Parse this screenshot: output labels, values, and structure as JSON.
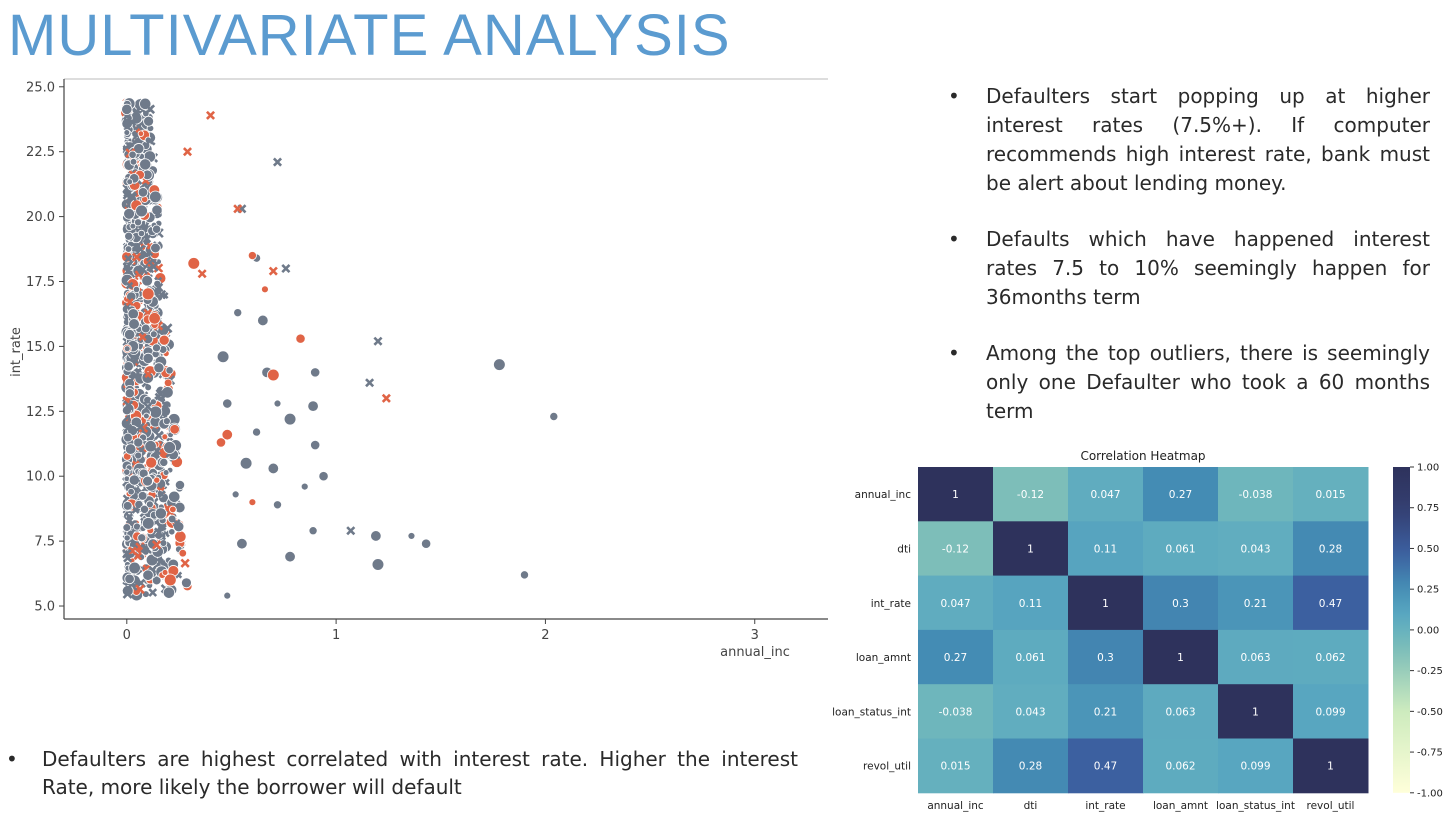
{
  "slide": {
    "title": "MULTIVARIATE ANALYSIS",
    "bullet_symbol": "•",
    "right_bullets": [
      " Defaulters start popping up at higher interest rates (7.5%+). If computer recommends high interest rate, bank must be alert about lending money.",
      "Defaults which have happened interest rates 7.5 to 10% seemingly happen for 36months term",
      "Among the top outliers, there is seemingly only one Defaulter who took a 60 months term"
    ],
    "bottom_bullet": "Defaulters are highest correlated with interest rate. Higher the interest Rate, more likely the borrower will default"
  },
  "colors": {
    "title": "#5b9bd0",
    "non_default": "#6f7a8a",
    "default": "#e06446"
  },
  "chart_data": [
    {
      "type": "scatter",
      "xlabel": "annual_inc",
      "ylabel": "int_rate",
      "xlim": [
        -0.3,
        3.35
      ],
      "ylim": [
        4.5,
        25.3
      ],
      "xticks": [
        0,
        1,
        2,
        3
      ],
      "yticks": [
        5.0,
        7.5,
        10.0,
        12.5,
        15.0,
        17.5,
        20.0,
        22.5,
        25.0
      ],
      "grid": false,
      "dense_cluster": {
        "x_range": [
          0.0,
          0.3
        ],
        "y_range": [
          5.4,
          24.4
        ]
      },
      "series": [
        {
          "group": "non_default",
          "points": [
            {
              "x": 0.72,
              "y": 22.1,
              "m": "x"
            },
            {
              "x": 0.55,
              "y": 20.3,
              "m": "x"
            },
            {
              "x": 0.76,
              "y": 18.0,
              "m": "x"
            },
            {
              "x": 0.62,
              "y": 18.4,
              "m": "o"
            },
            {
              "x": 0.65,
              "y": 16.0,
              "m": "o"
            },
            {
              "x": 1.2,
              "y": 15.2,
              "m": "x"
            },
            {
              "x": 0.9,
              "y": 14.0,
              "m": "o"
            },
            {
              "x": 1.78,
              "y": 14.3,
              "m": "o"
            },
            {
              "x": 2.04,
              "y": 12.3,
              "m": "o"
            },
            {
              "x": 0.89,
              "y": 12.7,
              "m": "o"
            },
            {
              "x": 0.72,
              "y": 12.8,
              "m": "o"
            },
            {
              "x": 0.9,
              "y": 11.2,
              "m": "o"
            },
            {
              "x": 0.78,
              "y": 12.2,
              "m": "o"
            },
            {
              "x": 0.62,
              "y": 11.7,
              "m": "o"
            },
            {
              "x": 0.7,
              "y": 10.3,
              "m": "o"
            },
            {
              "x": 0.85,
              "y": 9.6,
              "m": "o"
            },
            {
              "x": 0.94,
              "y": 10.0,
              "m": "o"
            },
            {
              "x": 1.07,
              "y": 7.9,
              "m": "x"
            },
            {
              "x": 0.89,
              "y": 7.9,
              "m": "o"
            },
            {
              "x": 1.19,
              "y": 7.7,
              "m": "o"
            },
            {
              "x": 1.36,
              "y": 7.7,
              "m": "o"
            },
            {
              "x": 1.43,
              "y": 7.4,
              "m": "o"
            },
            {
              "x": 1.2,
              "y": 6.6,
              "m": "o"
            },
            {
              "x": 1.9,
              "y": 6.2,
              "m": "o"
            },
            {
              "x": 0.78,
              "y": 6.9,
              "m": "o"
            },
            {
              "x": 0.48,
              "y": 5.4,
              "m": "o"
            },
            {
              "x": 1.16,
              "y": 13.6,
              "m": "x"
            },
            {
              "x": 0.57,
              "y": 10.5,
              "m": "o"
            },
            {
              "x": 0.72,
              "y": 8.9,
              "m": "o"
            },
            {
              "x": 0.55,
              "y": 7.4,
              "m": "o"
            },
            {
              "x": 0.52,
              "y": 9.3,
              "m": "o"
            },
            {
              "x": 0.48,
              "y": 12.8,
              "m": "o"
            },
            {
              "x": 0.46,
              "y": 14.6,
              "m": "o"
            },
            {
              "x": 0.53,
              "y": 16.3,
              "m": "o"
            },
            {
              "x": 0.67,
              "y": 14.0,
              "m": "o"
            }
          ]
        },
        {
          "group": "default",
          "points": [
            {
              "x": 0.4,
              "y": 23.9,
              "m": "x"
            },
            {
              "x": 0.29,
              "y": 22.5,
              "m": "x"
            },
            {
              "x": 0.53,
              "y": 20.3,
              "m": "x"
            },
            {
              "x": 0.6,
              "y": 18.5,
              "m": "o"
            },
            {
              "x": 0.7,
              "y": 17.9,
              "m": "x"
            },
            {
              "x": 0.66,
              "y": 17.2,
              "m": "o"
            },
            {
              "x": 0.83,
              "y": 15.3,
              "m": "o"
            },
            {
              "x": 0.7,
              "y": 13.9,
              "m": "o"
            },
            {
              "x": 1.24,
              "y": 13.0,
              "m": "x"
            },
            {
              "x": 0.48,
              "y": 11.6,
              "m": "o"
            },
            {
              "x": 0.6,
              "y": 9.0,
              "m": "o"
            },
            {
              "x": 0.45,
              "y": 11.3,
              "m": "o"
            },
            {
              "x": 0.32,
              "y": 18.2,
              "m": "o"
            },
            {
              "x": 0.36,
              "y": 17.8,
              "m": "x"
            }
          ]
        }
      ]
    },
    {
      "type": "heatmap",
      "title": "Correlation Heatmap",
      "labels": [
        "annual_inc",
        "dti",
        "int_rate",
        "loan_amnt",
        "loan_status_int",
        "revol_util"
      ],
      "values": [
        [
          1,
          -0.12,
          0.047,
          0.27,
          -0.038,
          0.015
        ],
        [
          -0.12,
          1,
          0.11,
          0.061,
          0.043,
          0.28
        ],
        [
          0.047,
          0.11,
          1,
          0.3,
          0.21,
          0.47
        ],
        [
          0.27,
          0.061,
          0.3,
          1,
          0.063,
          0.062
        ],
        [
          -0.038,
          0.043,
          0.21,
          0.063,
          1,
          0.099
        ],
        [
          0.015,
          0.28,
          0.47,
          0.062,
          0.099,
          1
        ]
      ],
      "value_labels": [
        [
          "1",
          "-0.12",
          "0.047",
          "0.27",
          "-0.038",
          "0.015"
        ],
        [
          "-0.12",
          "1",
          "0.11",
          "0.061",
          "0.043",
          "0.28"
        ],
        [
          "0.047",
          "0.11",
          "1",
          "0.3",
          "0.21",
          "0.47"
        ],
        [
          "0.27",
          "0.061",
          "0.3",
          "1",
          "0.063",
          "0.062"
        ],
        [
          "-0.038",
          "0.043",
          "0.21",
          "0.063",
          "1",
          "0.099"
        ],
        [
          "0.015",
          "0.28",
          "0.47",
          "0.062",
          "0.099",
          "1"
        ]
      ],
      "vmin": -1.0,
      "vmax": 1.0,
      "colorbar_ticks": [
        "1.00",
        "0.75",
        "0.50",
        "0.25",
        "0.00",
        "-0.25",
        "-0.50",
        "-0.75",
        "-1.00"
      ],
      "colormap": "YlGnBu"
    }
  ]
}
